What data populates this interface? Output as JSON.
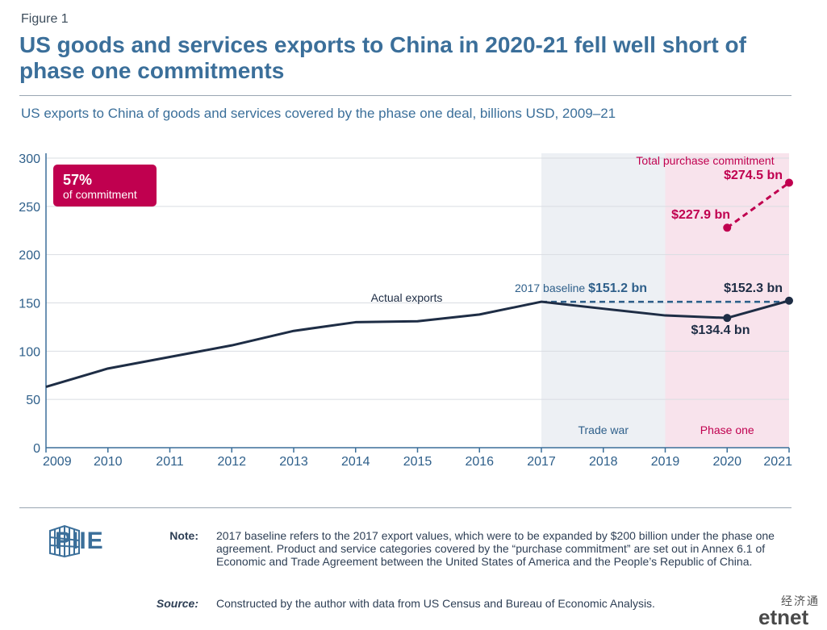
{
  "figure_label": "Figure 1",
  "title": "US goods and services exports to China in 2020-21 fell well short of phase one commitments",
  "subtitle": "US exports to China of goods and services covered by the phase one deal, billions USD, 2009–21",
  "note": {
    "label": "Note:",
    "text": "2017 baseline refers to the 2017 export values, which were to be expanded by $200 billion under the phase one agreement. Product and service categories covered by the “purchase commitment” are set out in Annex 6.1 of Economic and Trade Agreement between the United States of America and the People’s Republic of China."
  },
  "source": {
    "label": "Source:",
    "text": "Constructed by the author with data from US Census and Bureau of Economic Analysis."
  },
  "logo": {
    "text": "PIIE"
  },
  "watermark": {
    "cn": "经济通",
    "en": "etnet"
  },
  "colors": {
    "title": "#3b6f9a",
    "actual_line": "#1e2d45",
    "commitment": "#c0004f",
    "baseline": "#2e5f8a",
    "trade_war_band": "#edf0f4",
    "phase_one_band": "#f8e3ec"
  },
  "chart_data": {
    "type": "line",
    "x": [
      2009,
      2010,
      2011,
      2012,
      2013,
      2014,
      2015,
      2016,
      2017,
      2018,
      2019,
      2020,
      2021
    ],
    "xlim": [
      2009,
      2021
    ],
    "ylim": [
      0,
      300
    ],
    "yticks": [
      0,
      50,
      100,
      150,
      200,
      250,
      300
    ],
    "grid": true,
    "series": [
      {
        "name": "Actual exports",
        "values": [
          63,
          82,
          94,
          106,
          121,
          130,
          131,
          138,
          151.2,
          144,
          137,
          134.4,
          152.3
        ]
      },
      {
        "name": "Total purchase commitment",
        "x": [
          2020,
          2021
        ],
        "values": [
          227.9,
          274.5
        ]
      }
    ],
    "baseline": {
      "label": "2017  baseline",
      "value_label": "$151.2 bn",
      "value": 151.2,
      "from": 2017,
      "to": 2021
    },
    "bands": [
      {
        "label": "Trade war",
        "from": 2017,
        "to": 2019
      },
      {
        "label": "Phase one",
        "from": 2019,
        "to": 2021
      }
    ],
    "callout": {
      "value": "57%",
      "text": "of commitment"
    },
    "annotations": {
      "commitment_2020": "$227.9 bn",
      "commitment_2021": "$274.5 bn",
      "actual_2020": "$134.4 bn",
      "actual_2021": "$152.3 bn"
    }
  }
}
